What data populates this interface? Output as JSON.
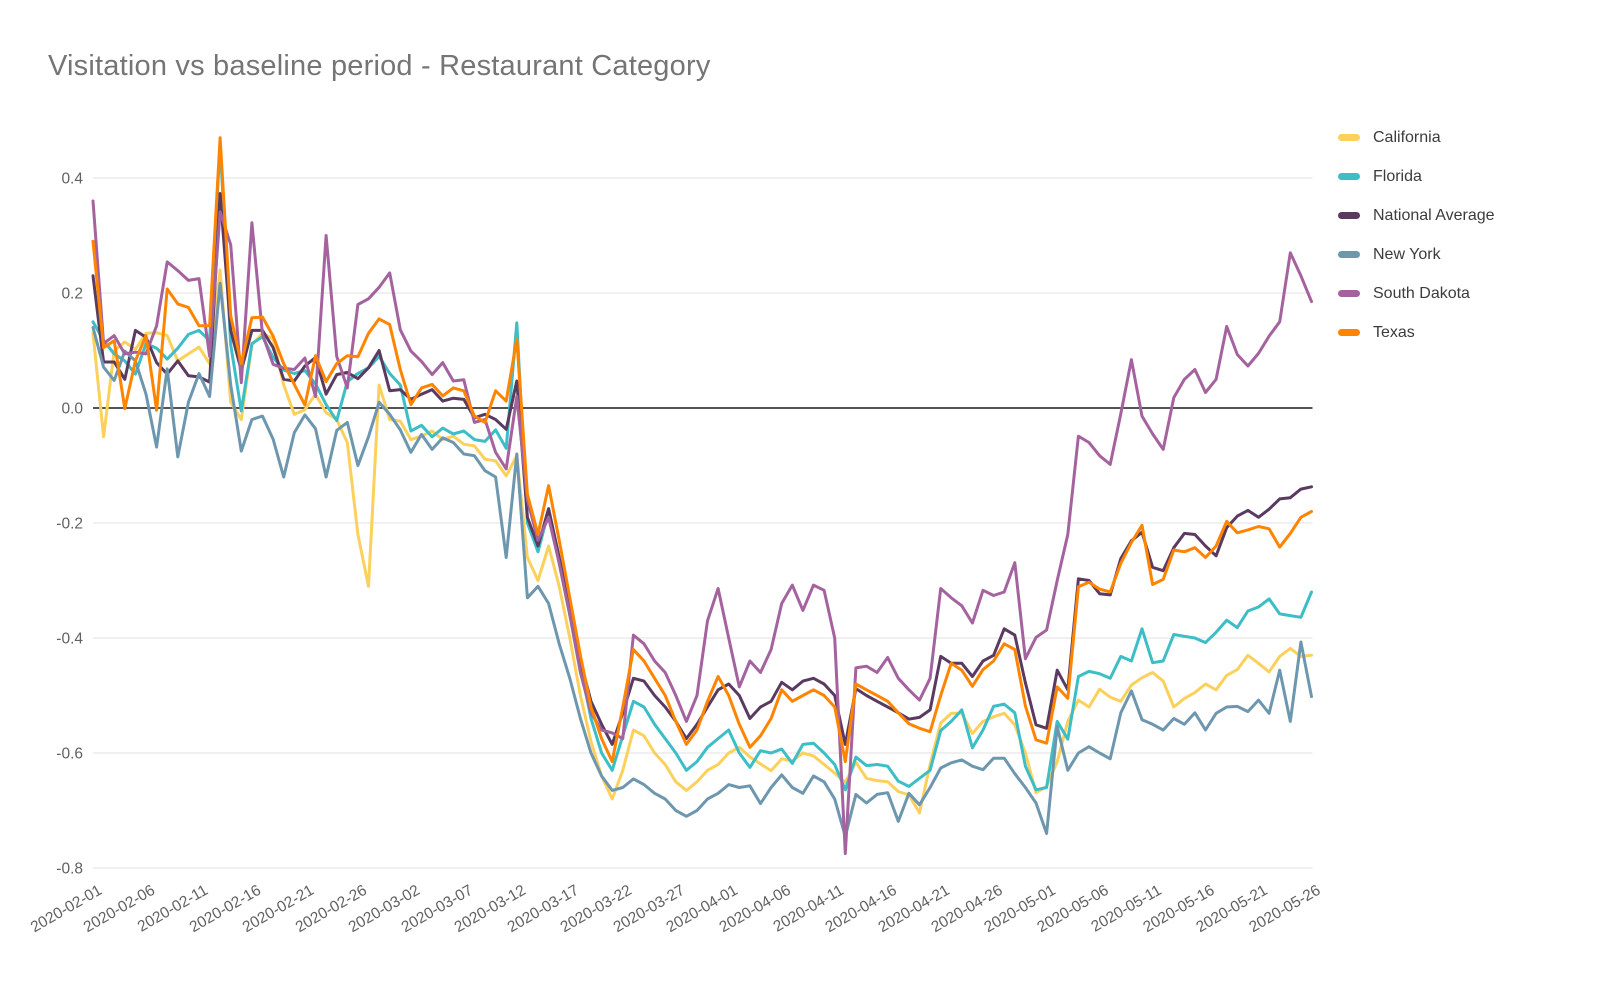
{
  "page": {
    "title": "Visitation vs baseline period - Restaurant Category"
  },
  "colors": {
    "background": "#ffffff",
    "title_text": "#757575",
    "axis_text": "#616161",
    "gridline": "#e0e0e0",
    "zero_line": "#1a1a1a"
  },
  "chart_data": {
    "type": "line",
    "title": "Visitation vs baseline period - Restaurant Category",
    "xlabel": "",
    "ylabel": "",
    "ylim": [
      -0.8,
      0.49
    ],
    "y_ticks": [
      0.4,
      0.2,
      0,
      -0.2,
      -0.4,
      -0.6,
      -0.8
    ],
    "x_tick_interval": 5,
    "grid": true,
    "zero_line": true,
    "legend_position": "right",
    "x": [
      "2020-02-01",
      "2020-02-02",
      "2020-02-03",
      "2020-02-04",
      "2020-02-05",
      "2020-02-06",
      "2020-02-07",
      "2020-02-08",
      "2020-02-09",
      "2020-02-10",
      "2020-02-11",
      "2020-02-12",
      "2020-02-13",
      "2020-02-14",
      "2020-02-15",
      "2020-02-16",
      "2020-02-17",
      "2020-02-18",
      "2020-02-19",
      "2020-02-20",
      "2020-02-21",
      "2020-02-22",
      "2020-02-23",
      "2020-02-24",
      "2020-02-25",
      "2020-02-26",
      "2020-02-27",
      "2020-02-28",
      "2020-02-29",
      "2020-03-01",
      "2020-03-02",
      "2020-03-03",
      "2020-03-04",
      "2020-03-05",
      "2020-03-06",
      "2020-03-07",
      "2020-03-08",
      "2020-03-09",
      "2020-03-10",
      "2020-03-11",
      "2020-03-12",
      "2020-03-13",
      "2020-03-14",
      "2020-03-15",
      "2020-03-16",
      "2020-03-17",
      "2020-03-18",
      "2020-03-19",
      "2020-03-20",
      "2020-03-21",
      "2020-03-22",
      "2020-03-23",
      "2020-03-24",
      "2020-03-25",
      "2020-03-26",
      "2020-03-27",
      "2020-03-28",
      "2020-03-29",
      "2020-03-30",
      "2020-03-31",
      "2020-04-01",
      "2020-04-02",
      "2020-04-03",
      "2020-04-04",
      "2020-04-05",
      "2020-04-06",
      "2020-04-07",
      "2020-04-08",
      "2020-04-09",
      "2020-04-10",
      "2020-04-11",
      "2020-04-12",
      "2020-04-13",
      "2020-04-14",
      "2020-04-15",
      "2020-04-16",
      "2020-04-17",
      "2020-04-18",
      "2020-04-19",
      "2020-04-20",
      "2020-04-21",
      "2020-04-22",
      "2020-04-23",
      "2020-04-24",
      "2020-04-25",
      "2020-04-26",
      "2020-04-27",
      "2020-04-28",
      "2020-04-29",
      "2020-04-30",
      "2020-05-01",
      "2020-05-02",
      "2020-05-03",
      "2020-05-04",
      "2020-05-05",
      "2020-05-06",
      "2020-05-07",
      "2020-05-08",
      "2020-05-09",
      "2020-05-10",
      "2020-05-11",
      "2020-05-12",
      "2020-05-13",
      "2020-05-14",
      "2020-05-15",
      "2020-05-16",
      "2020-05-17",
      "2020-05-18",
      "2020-05-19",
      "2020-05-20",
      "2020-05-21",
      "2020-05-22",
      "2020-05-23",
      "2020-05-24",
      "2020-05-25",
      "2020-05-26"
    ],
    "series": [
      {
        "name": "California",
        "color": "#FBD15B",
        "values": [
          0.13,
          -0.05,
          0.1,
          0.115,
          0.102,
          0.13,
          0.131,
          0.126,
          0.082,
          0.094,
          0.106,
          0.077,
          0.24,
          0.01,
          -0.02,
          0.11,
          0.13,
          0.12,
          0.04,
          -0.011,
          -0.003,
          0.024,
          -0.008,
          -0.02,
          -0.06,
          -0.22,
          -0.31,
          0.04,
          -0.02,
          -0.023,
          -0.055,
          -0.049,
          -0.04,
          -0.055,
          -0.049,
          -0.063,
          -0.066,
          -0.089,
          -0.092,
          -0.118,
          -0.083,
          -0.26,
          -0.3,
          -0.24,
          -0.31,
          -0.4,
          -0.5,
          -0.58,
          -0.64,
          -0.68,
          -0.63,
          -0.56,
          -0.57,
          -0.6,
          -0.62,
          -0.65,
          -0.665,
          -0.65,
          -0.63,
          -0.62,
          -0.6,
          -0.59,
          -0.607,
          -0.619,
          -0.631,
          -0.61,
          -0.614,
          -0.6,
          -0.605,
          -0.62,
          -0.635,
          -0.651,
          -0.616,
          -0.644,
          -0.648,
          -0.65,
          -0.667,
          -0.673,
          -0.704,
          -0.62,
          -0.548,
          -0.531,
          -0.531,
          -0.566,
          -0.545,
          -0.537,
          -0.531,
          -0.551,
          -0.6,
          -0.669,
          -0.658,
          -0.615,
          -0.545,
          -0.508,
          -0.52,
          -0.489,
          -0.503,
          -0.51,
          -0.482,
          -0.469,
          -0.46,
          -0.475,
          -0.52,
          -0.505,
          -0.495,
          -0.48,
          -0.49,
          -0.465,
          -0.455,
          -0.43,
          -0.444,
          -0.459,
          -0.432,
          -0.418,
          -0.432,
          -0.43
        ]
      },
      {
        "name": "Florida",
        "color": "#3DBDC6",
        "values": [
          0.15,
          0.117,
          0.094,
          0.082,
          0.059,
          0.112,
          0.104,
          0.085,
          0.104,
          0.128,
          0.135,
          0.117,
          0.46,
          0.11,
          -0.005,
          0.112,
          0.124,
          0.088,
          0.066,
          0.06,
          0.065,
          0.042,
          0.006,
          -0.022,
          0.046,
          0.06,
          0.07,
          0.09,
          0.06,
          0.04,
          -0.04,
          -0.03,
          -0.05,
          -0.035,
          -0.045,
          -0.04,
          -0.055,
          -0.058,
          -0.038,
          -0.07,
          0.148,
          -0.2,
          -0.25,
          -0.18,
          -0.27,
          -0.36,
          -0.45,
          -0.54,
          -0.6,
          -0.63,
          -0.57,
          -0.51,
          -0.52,
          -0.55,
          -0.575,
          -0.6,
          -0.63,
          -0.615,
          -0.59,
          -0.575,
          -0.56,
          -0.6,
          -0.625,
          -0.596,
          -0.6,
          -0.593,
          -0.618,
          -0.585,
          -0.583,
          -0.6,
          -0.62,
          -0.664,
          -0.607,
          -0.622,
          -0.62,
          -0.623,
          -0.649,
          -0.658,
          -0.644,
          -0.63,
          -0.561,
          -0.545,
          -0.525,
          -0.591,
          -0.56,
          -0.519,
          -0.515,
          -0.53,
          -0.623,
          -0.664,
          -0.66,
          -0.545,
          -0.576,
          -0.467,
          -0.458,
          -0.462,
          -0.47,
          -0.432,
          -0.44,
          -0.384,
          -0.443,
          -0.44,
          -0.394,
          -0.397,
          -0.4,
          -0.408,
          -0.39,
          -0.369,
          -0.382,
          -0.353,
          -0.346,
          -0.332,
          -0.358,
          -0.361,
          -0.364,
          -0.32
        ]
      },
      {
        "name": "National Average",
        "color": "#5B3A61",
        "values": [
          0.23,
          0.08,
          0.08,
          0.05,
          0.135,
          0.123,
          0.079,
          0.059,
          0.082,
          0.056,
          0.054,
          0.045,
          0.373,
          0.135,
          0.065,
          0.135,
          0.135,
          0.105,
          0.05,
          0.047,
          0.073,
          0.088,
          0.024,
          0.058,
          0.062,
          0.051,
          0.07,
          0.1,
          0.03,
          0.032,
          0.015,
          0.024,
          0.032,
          0.012,
          0.017,
          0.015,
          -0.017,
          -0.011,
          -0.02,
          -0.037,
          0.047,
          -0.19,
          -0.24,
          -0.175,
          -0.26,
          -0.35,
          -0.44,
          -0.51,
          -0.55,
          -0.585,
          -0.53,
          -0.47,
          -0.475,
          -0.5,
          -0.52,
          -0.545,
          -0.575,
          -0.55,
          -0.52,
          -0.49,
          -0.48,
          -0.5,
          -0.54,
          -0.52,
          -0.51,
          -0.477,
          -0.49,
          -0.475,
          -0.47,
          -0.48,
          -0.5,
          -0.585,
          -0.488,
          -0.5,
          -0.51,
          -0.52,
          -0.53,
          -0.541,
          -0.538,
          -0.525,
          -0.432,
          -0.444,
          -0.444,
          -0.467,
          -0.44,
          -0.43,
          -0.384,
          -0.395,
          -0.478,
          -0.551,
          -0.557,
          -0.456,
          -0.49,
          -0.297,
          -0.3,
          -0.323,
          -0.325,
          -0.262,
          -0.231,
          -0.216,
          -0.277,
          -0.283,
          -0.243,
          -0.218,
          -0.22,
          -0.24,
          -0.257,
          -0.208,
          -0.188,
          -0.178,
          -0.19,
          -0.176,
          -0.158,
          -0.156,
          -0.141,
          -0.137
        ]
      },
      {
        "name": "New York",
        "color": "#6D97AE",
        "values": [
          0.14,
          0.071,
          0.048,
          0.099,
          0.082,
          0.024,
          -0.068,
          0.068,
          -0.085,
          0.01,
          0.06,
          0.02,
          0.217,
          0.04,
          -0.075,
          -0.02,
          -0.014,
          -0.054,
          -0.12,
          -0.043,
          -0.012,
          -0.036,
          -0.12,
          -0.039,
          -0.025,
          -0.1,
          -0.05,
          0.01,
          -0.011,
          -0.038,
          -0.077,
          -0.046,
          -0.072,
          -0.052,
          -0.06,
          -0.08,
          -0.083,
          -0.109,
          -0.12,
          -0.26,
          -0.08,
          -0.33,
          -0.31,
          -0.34,
          -0.41,
          -0.47,
          -0.54,
          -0.6,
          -0.64,
          -0.665,
          -0.66,
          -0.645,
          -0.655,
          -0.67,
          -0.68,
          -0.7,
          -0.71,
          -0.7,
          -0.68,
          -0.67,
          -0.655,
          -0.66,
          -0.657,
          -0.688,
          -0.66,
          -0.638,
          -0.66,
          -0.67,
          -0.64,
          -0.65,
          -0.68,
          -0.745,
          -0.672,
          -0.687,
          -0.672,
          -0.669,
          -0.719,
          -0.67,
          -0.69,
          -0.66,
          -0.626,
          -0.617,
          -0.612,
          -0.623,
          -0.629,
          -0.609,
          -0.609,
          -0.636,
          -0.66,
          -0.687,
          -0.74,
          -0.554,
          -0.63,
          -0.6,
          -0.589,
          -0.6,
          -0.61,
          -0.53,
          -0.492,
          -0.542,
          -0.55,
          -0.56,
          -0.54,
          -0.55,
          -0.53,
          -0.56,
          -0.531,
          -0.52,
          -0.519,
          -0.528,
          -0.508,
          -0.531,
          -0.456,
          -0.545,
          -0.407,
          -0.502
        ]
      },
      {
        "name": "South Dakota",
        "color": "#A4639F",
        "values": [
          0.36,
          0.112,
          0.126,
          0.094,
          0.097,
          0.094,
          0.143,
          0.254,
          0.239,
          0.222,
          0.225,
          0.09,
          0.341,
          0.284,
          0.044,
          0.322,
          0.128,
          0.076,
          0.069,
          0.067,
          0.087,
          0.02,
          0.3,
          0.09,
          0.035,
          0.18,
          0.19,
          0.21,
          0.235,
          0.136,
          0.099,
          0.081,
          0.058,
          0.079,
          0.047,
          0.049,
          -0.025,
          -0.02,
          -0.077,
          -0.106,
          0.02,
          -0.16,
          -0.23,
          -0.19,
          -0.27,
          -0.36,
          -0.46,
          -0.53,
          -0.56,
          -0.565,
          -0.575,
          -0.395,
          -0.41,
          -0.44,
          -0.46,
          -0.5,
          -0.545,
          -0.5,
          -0.37,
          -0.314,
          -0.4,
          -0.485,
          -0.44,
          -0.46,
          -0.42,
          -0.34,
          -0.308,
          -0.352,
          -0.308,
          -0.317,
          -0.4,
          -0.775,
          -0.452,
          -0.449,
          -0.46,
          -0.434,
          -0.47,
          -0.49,
          -0.508,
          -0.47,
          -0.314,
          -0.33,
          -0.344,
          -0.374,
          -0.317,
          -0.326,
          -0.32,
          -0.269,
          -0.436,
          -0.399,
          -0.386,
          -0.3,
          -0.22,
          -0.049,
          -0.06,
          -0.083,
          -0.098,
          -0.01,
          0.084,
          -0.014,
          -0.045,
          -0.072,
          0.018,
          0.05,
          0.067,
          0.027,
          0.05,
          0.142,
          0.093,
          0.073,
          0.095,
          0.125,
          0.15,
          0.27,
          0.23,
          0.185
        ]
      },
      {
        "name": "Texas",
        "color": "#FF8400",
        "values": [
          0.29,
          0.105,
          0.117,
          -0.001,
          0.082,
          0.126,
          -0.004,
          0.207,
          0.181,
          0.175,
          0.143,
          0.143,
          0.47,
          0.16,
          0.077,
          0.157,
          0.158,
          0.125,
          0.077,
          0.041,
          0.005,
          0.091,
          0.046,
          0.077,
          0.091,
          0.089,
          0.13,
          0.155,
          0.145,
          0.067,
          0.006,
          0.035,
          0.041,
          0.021,
          0.035,
          0.03,
          -0.014,
          -0.025,
          0.03,
          0.012,
          0.12,
          -0.15,
          -0.22,
          -0.135,
          -0.23,
          -0.33,
          -0.43,
          -0.52,
          -0.575,
          -0.615,
          -0.52,
          -0.42,
          -0.44,
          -0.47,
          -0.5,
          -0.545,
          -0.585,
          -0.56,
          -0.51,
          -0.467,
          -0.5,
          -0.55,
          -0.59,
          -0.57,
          -0.54,
          -0.49,
          -0.51,
          -0.5,
          -0.49,
          -0.5,
          -0.52,
          -0.615,
          -0.48,
          -0.49,
          -0.5,
          -0.51,
          -0.53,
          -0.549,
          -0.557,
          -0.563,
          -0.5,
          -0.444,
          -0.456,
          -0.484,
          -0.455,
          -0.44,
          -0.41,
          -0.42,
          -0.518,
          -0.577,
          -0.583,
          -0.485,
          -0.505,
          -0.311,
          -0.303,
          -0.315,
          -0.32,
          -0.27,
          -0.234,
          -0.204,
          -0.307,
          -0.298,
          -0.247,
          -0.25,
          -0.243,
          -0.26,
          -0.24,
          -0.197,
          -0.217,
          -0.212,
          -0.206,
          -0.21,
          -0.242,
          -0.218,
          -0.19,
          -0.18
        ]
      }
    ]
  }
}
